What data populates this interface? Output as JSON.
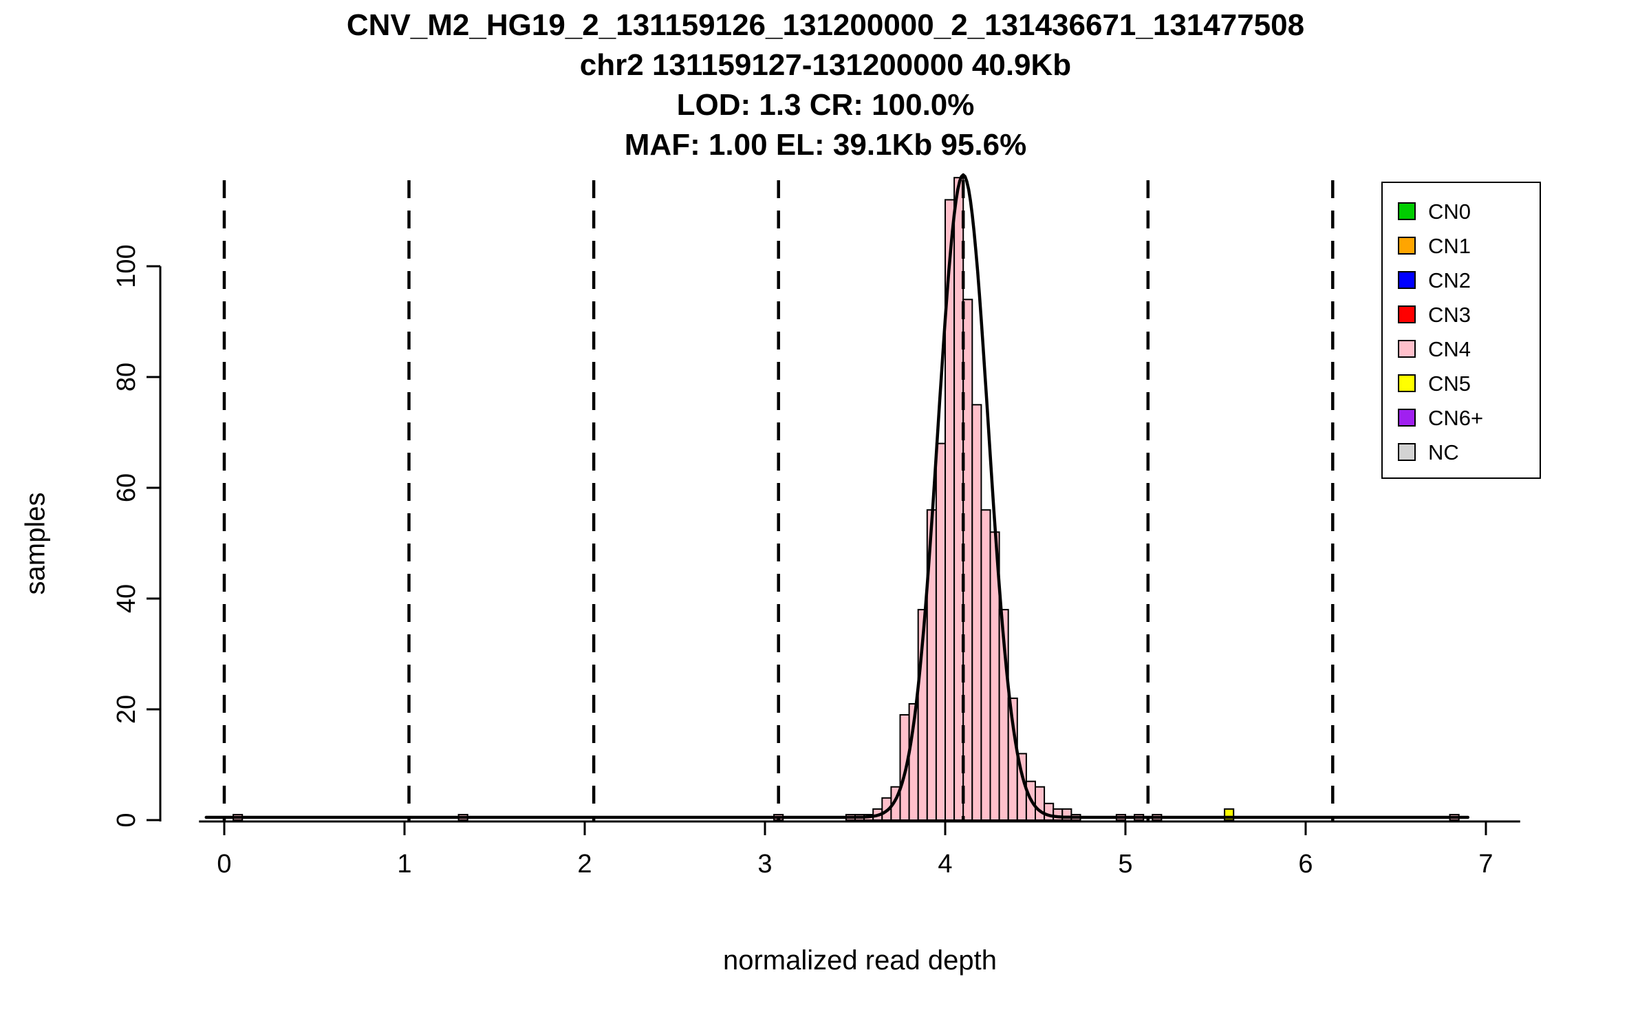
{
  "titles": {
    "line1": "CNV_M2_HG19_2_131159126_131200000_2_131436671_131477508",
    "line2": "chr2 131159127-131200000 40.9Kb",
    "line3": "LOD: 1.3 CR: 100.0%",
    "line4": "MAF: 1.00 EL: 39.1Kb 95.6%"
  },
  "chart_data": {
    "type": "bar",
    "subtype": "histogram-with-density-curve",
    "title": "CNV_M2_HG19_2_131159126_131200000_2_131436671_131477508",
    "subtitle_lines": [
      "chr2 131159127-131200000 40.9Kb",
      "LOD: 1.3 CR: 100.0%",
      "MAF: 1.00 EL: 39.1Kb 95.6%"
    ],
    "xlabel": "normalized read depth",
    "ylabel": "samples",
    "xlim": [
      -0.14,
      7.19
    ],
    "ylim": [
      0,
      117
    ],
    "x_ticks": [
      0,
      1,
      2,
      3,
      4,
      5,
      6,
      7
    ],
    "y_ticks": [
      0,
      20,
      40,
      60,
      80,
      100
    ],
    "grid": false,
    "bin_width": 0.05,
    "histogram_cn": "CN4",
    "histogram_color": "#FFC0CB",
    "histogram_bins": [
      [
        3.45,
        1
      ],
      [
        3.5,
        1
      ],
      [
        3.55,
        1
      ],
      [
        3.6,
        2
      ],
      [
        3.65,
        4
      ],
      [
        3.7,
        6
      ],
      [
        3.75,
        19
      ],
      [
        3.8,
        21
      ],
      [
        3.85,
        38
      ],
      [
        3.9,
        56
      ],
      [
        3.95,
        68
      ],
      [
        4.0,
        112
      ],
      [
        4.05,
        116
      ],
      [
        4.1,
        94
      ],
      [
        4.15,
        75
      ],
      [
        4.2,
        56
      ],
      [
        4.25,
        52
      ],
      [
        4.3,
        38
      ],
      [
        4.35,
        22
      ],
      [
        4.4,
        12
      ],
      [
        4.45,
        7
      ],
      [
        4.5,
        6
      ],
      [
        4.55,
        3
      ],
      [
        4.6,
        2
      ],
      [
        4.65,
        2
      ],
      [
        4.7,
        1
      ]
    ],
    "extra_bars": [
      {
        "x": 0.05,
        "count": 1,
        "color": "#FFC0CB"
      },
      {
        "x": 1.3,
        "count": 1,
        "color": "#FFC0CB"
      },
      {
        "x": 3.05,
        "count": 1,
        "color": "#FFC0CB"
      },
      {
        "x": 4.95,
        "count": 1,
        "color": "#FFC0CB"
      },
      {
        "x": 5.05,
        "count": 1,
        "color": "#FFC0CB"
      },
      {
        "x": 5.15,
        "count": 1,
        "color": "#FFC0CB"
      },
      {
        "x": 5.55,
        "count": 2,
        "color": "#FFFF00"
      },
      {
        "x": 6.8,
        "count": 1,
        "color": "#FFC0CB"
      }
    ],
    "dashed_lines_x": [
      0,
      1.025,
      2.05,
      3.075,
      4.1,
      5.125,
      6.15
    ],
    "density_curve": {
      "mu": 4.1,
      "sd": 0.14,
      "amplitude": 116,
      "baseline": 0.5,
      "x_start": -0.1,
      "x_end": 6.9,
      "color": "#000000"
    },
    "legend_position": "top-right",
    "legend": [
      {
        "label": "CN0",
        "color": "#00CD00"
      },
      {
        "label": "CN1",
        "color": "#FFA500"
      },
      {
        "label": "CN2",
        "color": "#0000FF"
      },
      {
        "label": "CN3",
        "color": "#FF0000"
      },
      {
        "label": "CN4",
        "color": "#FFC0CB"
      },
      {
        "label": "CN5",
        "color": "#FFFF00"
      },
      {
        "label": "CN6+",
        "color": "#A020F0"
      },
      {
        "label": "NC",
        "color": "#D3D3D3"
      }
    ]
  }
}
